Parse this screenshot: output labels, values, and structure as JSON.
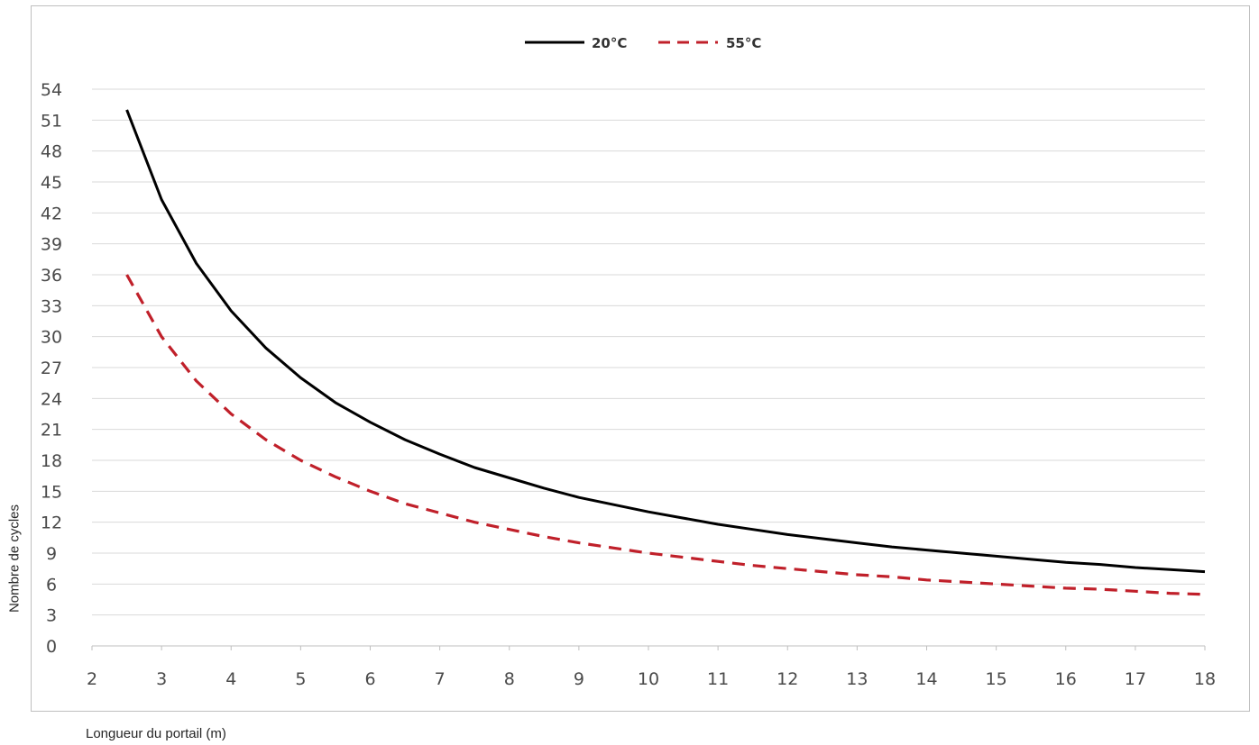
{
  "chart_data": {
    "type": "line",
    "title": "",
    "xlabel": "Longueur du portail (m)",
    "ylabel": "Nombre de cycles",
    "xlim": [
      2,
      18
    ],
    "ylim": [
      0,
      54
    ],
    "xticks": [
      2,
      3,
      4,
      5,
      6,
      7,
      8,
      9,
      10,
      11,
      12,
      13,
      14,
      15,
      16,
      17,
      18
    ],
    "yticks": [
      0,
      3,
      6,
      9,
      12,
      15,
      18,
      21,
      24,
      27,
      30,
      33,
      36,
      39,
      42,
      45,
      48,
      51,
      54
    ],
    "grid": true,
    "legend_position": "top-center",
    "x": [
      2.5,
      3,
      3.5,
      4,
      4.5,
      5,
      5.5,
      6,
      6.5,
      7,
      7.5,
      8,
      8.5,
      9,
      9.5,
      10,
      10.5,
      11,
      11.5,
      12,
      12.5,
      13,
      13.5,
      14,
      14.5,
      15,
      15.5,
      16,
      16.5,
      17,
      17.5,
      18
    ],
    "series": [
      {
        "name": "20°C",
        "color": "#000000",
        "style": "solid",
        "values": [
          52,
          43.3,
          37.1,
          32.5,
          28.9,
          26,
          23.6,
          21.7,
          20,
          18.6,
          17.3,
          16.3,
          15.3,
          14.4,
          13.7,
          13,
          12.4,
          11.8,
          11.3,
          10.8,
          10.4,
          10,
          9.6,
          9.3,
          9,
          8.7,
          8.4,
          8.1,
          7.9,
          7.6,
          7.4,
          7.2
        ]
      },
      {
        "name": "55°C",
        "color": "#c0202a",
        "style": "dashed",
        "values": [
          36,
          30,
          25.7,
          22.5,
          20,
          18,
          16.4,
          15,
          13.8,
          12.9,
          12,
          11.3,
          10.6,
          10,
          9.5,
          9,
          8.6,
          8.2,
          7.8,
          7.5,
          7.2,
          6.9,
          6.7,
          6.4,
          6.2,
          6,
          5.8,
          5.6,
          5.5,
          5.3,
          5.1,
          5
        ]
      }
    ]
  }
}
